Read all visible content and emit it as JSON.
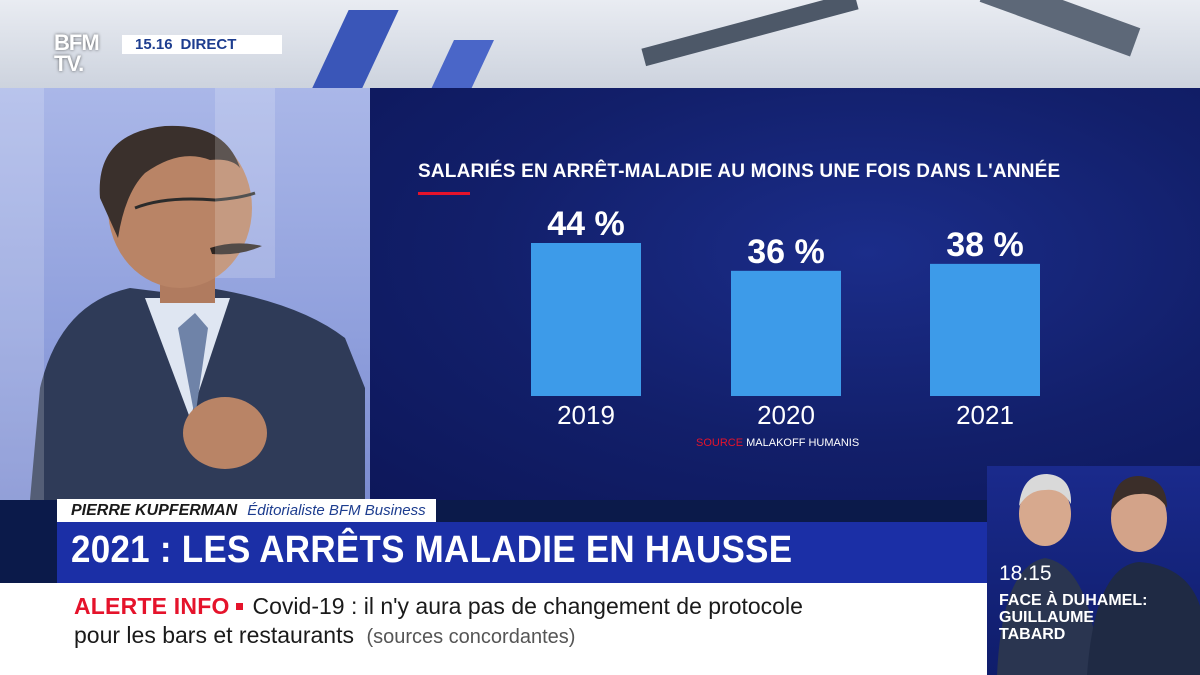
{
  "channel": {
    "logo_line1": "BFM",
    "logo_line2": "TV.",
    "time": "15.16",
    "live_label": "DIRECT"
  },
  "lower_third": {
    "person": "PIERRE KUPFERMAN",
    "role": "Éditorialiste BFM Business",
    "headline": "2021 : LES ARRÊTS MALADIE EN HAUSSE"
  },
  "ticker": {
    "alert_label": "ALERTE INFO",
    "line1": "Covid-19 : il n'y aura pas de changement de protocole",
    "line2": "pour les bars et restaurants",
    "source": "(sources concordantes)"
  },
  "promo": {
    "time": "18.15",
    "show_line1": "FACE À DUHAMEL:",
    "show_line2": "GUILLAUME",
    "show_line3": "TABARD"
  },
  "colors": {
    "bar": "#3d9be9",
    "accent_red": "#e5132b",
    "headline_blue": "#1b2fa6"
  },
  "chart_data": {
    "type": "bar",
    "title": "SALARIÉS EN ARRÊT-MALADIE AU MOINS UNE FOIS DANS L'ANNÉE",
    "categories": [
      "2019",
      "2020",
      "2021"
    ],
    "values": [
      44,
      36,
      38
    ],
    "value_labels": [
      "44 %",
      "36 %",
      "38 %"
    ],
    "unit": "%",
    "source_label": "SOURCE",
    "source_org": "MALAKOFF HUMANIS",
    "grid": false,
    "legend": "none"
  }
}
